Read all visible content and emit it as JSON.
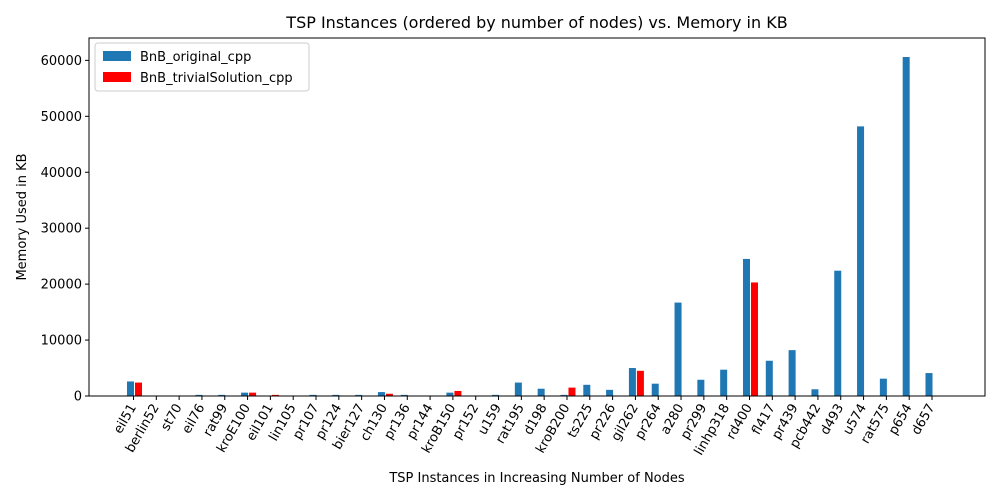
{
  "chart_data": {
    "type": "bar",
    "title": "TSP Instances (ordered by number of nodes) vs. Memory in KB",
    "xlabel": "TSP Instances in Increasing Number of Nodes",
    "ylabel": "Memory Used in KB",
    "ylim": [
      0,
      64000
    ],
    "yticks": [
      0,
      10000,
      20000,
      30000,
      40000,
      50000,
      60000
    ],
    "legend_position": "top-left",
    "grid": false,
    "categories": [
      "eil51",
      "berlin52",
      "st70",
      "eil76",
      "rat99",
      "kroE100",
      "eil101",
      "lin105",
      "pr107",
      "pr124",
      "bier127",
      "ch130",
      "pr136",
      "pr144",
      "kroB150",
      "pr152",
      "u159",
      "rat195",
      "d198",
      "kroB200",
      "ts225",
      "pr226",
      "gil262",
      "pr264",
      "a280",
      "pr299",
      "linhp318",
      "rd400",
      "fl417",
      "pr439",
      "pcb442",
      "d493",
      "u574",
      "rat575",
      "p654",
      "d657"
    ],
    "series": [
      {
        "name": "BnB_original_cpp",
        "color": "#1f77b4",
        "values": [
          2600,
          0,
          0,
          200,
          200,
          600,
          0,
          0,
          200,
          200,
          200,
          700,
          200,
          0,
          600,
          0,
          200,
          2400,
          1300,
          200,
          2000,
          1100,
          5000,
          2200,
          16700,
          2900,
          4700,
          24500,
          6300,
          8200,
          1200,
          22400,
          48200,
          3100,
          60600,
          4100
        ]
      },
      {
        "name": "BnB_trivialSolution_cpp",
        "color": "#ff0000",
        "values": [
          2400,
          0,
          0,
          0,
          0,
          600,
          200,
          0,
          0,
          0,
          0,
          400,
          0,
          0,
          900,
          0,
          0,
          0,
          0,
          1500,
          0,
          0,
          4500,
          0,
          0,
          0,
          0,
          20300,
          0,
          0,
          0,
          0,
          0,
          0,
          0,
          0
        ]
      }
    ]
  }
}
